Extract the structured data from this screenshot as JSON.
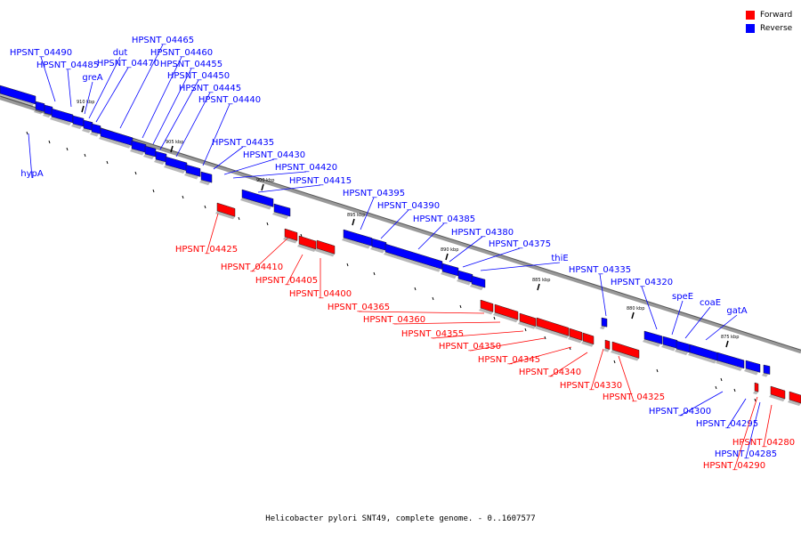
{
  "caption": "Helicobacter pylori SNT49, complete genome. - 0..1607577",
  "legend": [
    {
      "label": "Forward",
      "color": "#ff0000"
    },
    {
      "label": "Reverse",
      "color": "#0000ff"
    }
  ],
  "colors": {
    "forward": "#ff0000",
    "reverse": "#0000ff",
    "axis": "#808080"
  },
  "scale_ticks": [
    "910 kbp",
    "905 kbp",
    "900 kbp",
    "895 kbp",
    "890 kbp",
    "885 kbp",
    "880 kbp",
    "875 kbp"
  ],
  "genes_reverse": [
    "HPSNT_04490",
    "HPSNT_04485",
    "greA",
    "dut",
    "HPSNT_04470",
    "HPSNT_04465",
    "HPSNT_04460",
    "HPSNT_04455",
    "HPSNT_04450",
    "HPSNT_04445",
    "HPSNT_04440",
    "hypA",
    "HPSNT_04435",
    "HPSNT_04430",
    "HPSNT_04420",
    "HPSNT_04415",
    "HPSNT_04395",
    "HPSNT_04390",
    "HPSNT_04385",
    "HPSNT_04380",
    "HPSNT_04375",
    "thiE",
    "HPSNT_04335",
    "HPSNT_04320",
    "speE",
    "coaE",
    "gatA",
    "HPSNT_04300",
    "HPSNT_04295",
    "HPSNT_04285"
  ],
  "genes_forward": [
    "HPSNT_04425",
    "HPSNT_04410",
    "HPSNT_04405",
    "HPSNT_04400",
    "HPSNT_04365",
    "HPSNT_04360",
    "HPSNT_04355",
    "HPSNT_04350",
    "HPSNT_04345",
    "HPSNT_04340",
    "HPSNT_04330",
    "HPSNT_04325",
    "HPSNT_04280",
    "HPSNT_04290"
  ]
}
